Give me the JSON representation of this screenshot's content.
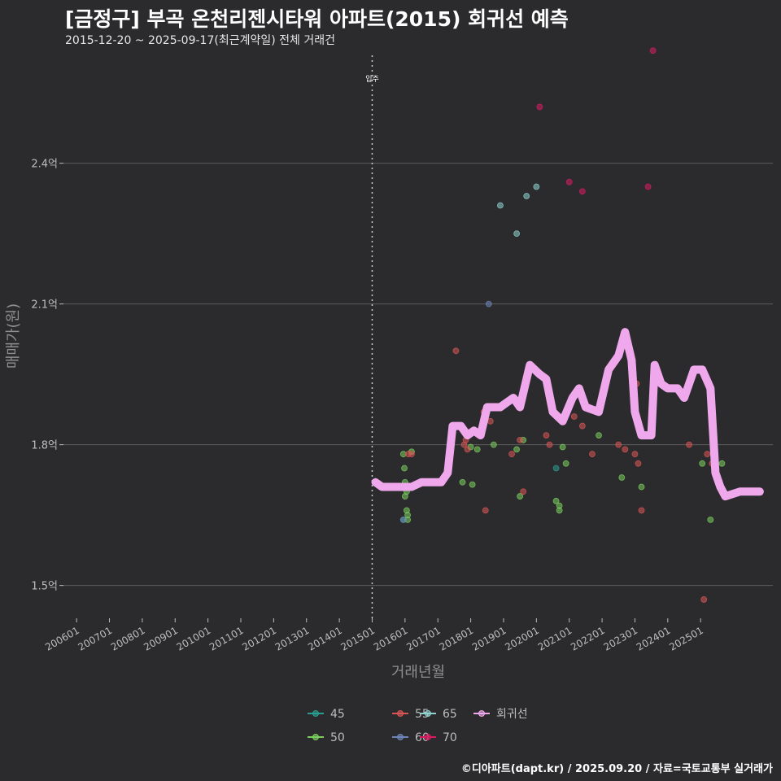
{
  "title": "[금정구] 부곡 온천리젠시타워 아파트(2015) 회귀선 예측",
  "subtitle": "2015-12-20 ~ 2025-09-17(최근계약일) 전체 거래건",
  "credit": "©디아파트(dapt.kr) / 2025.09.20 / 자료=국토교통부 실거래가",
  "chart_data": {
    "type": "scatter",
    "title": "[금정구] 부곡 온천리젠시타워 아파트(2015) 회귀선 예측",
    "xlabel": "거래년월",
    "ylabel": "매매가(원)",
    "x_ticks": [
      "200601",
      "200701",
      "200801",
      "200901",
      "201001",
      "201101",
      "201201",
      "201301",
      "201401",
      "201501",
      "201601",
      "201701",
      "201801",
      "201901",
      "202001",
      "202101",
      "202201",
      "202301",
      "202401",
      "202501"
    ],
    "y_ticks": [
      {
        "value": 1.5,
        "label": "1.5억"
      },
      {
        "value": 1.8,
        "label": "1.8억"
      },
      {
        "value": 2.1,
        "label": "2.1억"
      },
      {
        "value": 2.4,
        "label": "2.4억"
      }
    ],
    "xlim": [
      2005.6,
      2027.2
    ],
    "ylim": [
      1.43,
      2.63
    ],
    "annotation": {
      "label": "입주",
      "x": 2015.0
    },
    "colors": {
      "45": "#2a9d8f",
      "50": "#7ccf5e",
      "55": "#d95555",
      "60": "#6f86b8",
      "65": "#8fd1cf",
      "70": "#d81b60",
      "회귀선": "#f0a8ec"
    },
    "legend": [
      "45",
      "55",
      "65",
      "회귀선",
      "50",
      "60",
      "70"
    ],
    "series": [
      {
        "name": "45",
        "points": [
          [
            2015.95,
            1.64
          ],
          [
            2020.6,
            1.75
          ]
        ]
      },
      {
        "name": "50",
        "points": [
          [
            2015.95,
            1.78
          ],
          [
            2015.98,
            1.75
          ],
          [
            2016.0,
            1.72
          ],
          [
            2016.0,
            1.69
          ],
          [
            2016.05,
            1.7
          ],
          [
            2016.05,
            1.66
          ],
          [
            2016.08,
            1.65
          ],
          [
            2016.08,
            1.64
          ],
          [
            2016.2,
            1.785
          ],
          [
            2017.75,
            1.72
          ],
          [
            2018.0,
            1.795
          ],
          [
            2018.05,
            1.715
          ],
          [
            2018.2,
            1.79
          ],
          [
            2018.7,
            1.8
          ],
          [
            2019.4,
            1.79
          ],
          [
            2019.5,
            1.69
          ],
          [
            2019.6,
            1.81
          ],
          [
            2020.6,
            1.68
          ],
          [
            2020.7,
            1.67
          ],
          [
            2020.7,
            1.66
          ],
          [
            2020.8,
            1.795
          ],
          [
            2020.9,
            1.76
          ],
          [
            2021.9,
            1.82
          ],
          [
            2022.6,
            1.73
          ],
          [
            2023.2,
            1.71
          ],
          [
            2025.05,
            1.76
          ],
          [
            2025.3,
            1.64
          ],
          [
            2025.65,
            1.76
          ]
        ]
      },
      {
        "name": "55",
        "points": [
          [
            2016.1,
            1.78
          ],
          [
            2016.2,
            1.78
          ],
          [
            2017.8,
            1.8
          ],
          [
            2017.85,
            1.81
          ],
          [
            2017.9,
            1.79
          ],
          [
            2018.4,
            1.87
          ],
          [
            2018.6,
            1.85
          ],
          [
            2019.25,
            1.78
          ],
          [
            2019.5,
            1.81
          ],
          [
            2019.6,
            1.7
          ],
          [
            2020.3,
            1.82
          ],
          [
            2020.4,
            1.8
          ],
          [
            2021.15,
            1.86
          ],
          [
            2021.4,
            1.84
          ],
          [
            2021.5,
            1.88
          ],
          [
            2021.6,
            1.88
          ],
          [
            2021.7,
            1.78
          ],
          [
            2022.5,
            1.8
          ],
          [
            2022.7,
            1.79
          ],
          [
            2022.8,
            2.0
          ],
          [
            2023.0,
            1.78
          ],
          [
            2023.1,
            1.76
          ],
          [
            2024.65,
            1.8
          ],
          [
            2025.1,
            1.47
          ],
          [
            2025.2,
            1.78
          ],
          [
            2025.35,
            1.76
          ],
          [
            2017.55,
            2.0
          ],
          [
            2018.45,
            1.66
          ],
          [
            2023.05,
            1.93
          ],
          [
            2023.2,
            1.66
          ]
        ]
      },
      {
        "name": "60",
        "points": [
          [
            2018.55,
            2.1
          ],
          [
            2015.95,
            1.64
          ]
        ]
      },
      {
        "name": "65",
        "points": [
          [
            2018.9,
            2.31
          ],
          [
            2019.4,
            2.25
          ],
          [
            2020.0,
            2.35
          ],
          [
            2019.7,
            2.33
          ]
        ]
      },
      {
        "name": "70",
        "points": [
          [
            2020.1,
            2.52
          ],
          [
            2021.0,
            2.36
          ],
          [
            2021.4,
            2.34
          ],
          [
            2023.55,
            2.64
          ],
          [
            2023.4,
            2.35
          ]
        ]
      }
    ],
    "regression": {
      "name": "회귀선",
      "points": [
        [
          2015.1,
          1.72
        ],
        [
          2015.3,
          1.71
        ],
        [
          2015.7,
          1.71
        ],
        [
          2016.2,
          1.71
        ],
        [
          2016.5,
          1.72
        ],
        [
          2017.1,
          1.72
        ],
        [
          2017.3,
          1.74
        ],
        [
          2017.45,
          1.84
        ],
        [
          2017.7,
          1.84
        ],
        [
          2017.9,
          1.82
        ],
        [
          2018.1,
          1.83
        ],
        [
          2018.3,
          1.82
        ],
        [
          2018.5,
          1.88
        ],
        [
          2018.9,
          1.88
        ],
        [
          2019.1,
          1.89
        ],
        [
          2019.3,
          1.9
        ],
        [
          2019.5,
          1.88
        ],
        [
          2019.8,
          1.97
        ],
        [
          2020.1,
          1.95
        ],
        [
          2020.3,
          1.94
        ],
        [
          2020.5,
          1.87
        ],
        [
          2020.8,
          1.85
        ],
        [
          2021.1,
          1.9
        ],
        [
          2021.3,
          1.92
        ],
        [
          2021.5,
          1.88
        ],
        [
          2021.9,
          1.87
        ],
        [
          2022.2,
          1.96
        ],
        [
          2022.5,
          1.99
        ],
        [
          2022.7,
          2.04
        ],
        [
          2022.9,
          1.98
        ],
        [
          2023.0,
          1.87
        ],
        [
          2023.2,
          1.82
        ],
        [
          2023.5,
          1.82
        ],
        [
          2023.6,
          1.97
        ],
        [
          2023.8,
          1.93
        ],
        [
          2024.0,
          1.92
        ],
        [
          2024.3,
          1.92
        ],
        [
          2024.5,
          1.9
        ],
        [
          2024.8,
          1.96
        ],
        [
          2025.05,
          1.96
        ],
        [
          2025.3,
          1.92
        ],
        [
          2025.45,
          1.74
        ],
        [
          2025.6,
          1.71
        ],
        [
          2025.75,
          1.69
        ],
        [
          2026.2,
          1.7
        ],
        [
          2026.8,
          1.7
        ]
      ]
    }
  }
}
